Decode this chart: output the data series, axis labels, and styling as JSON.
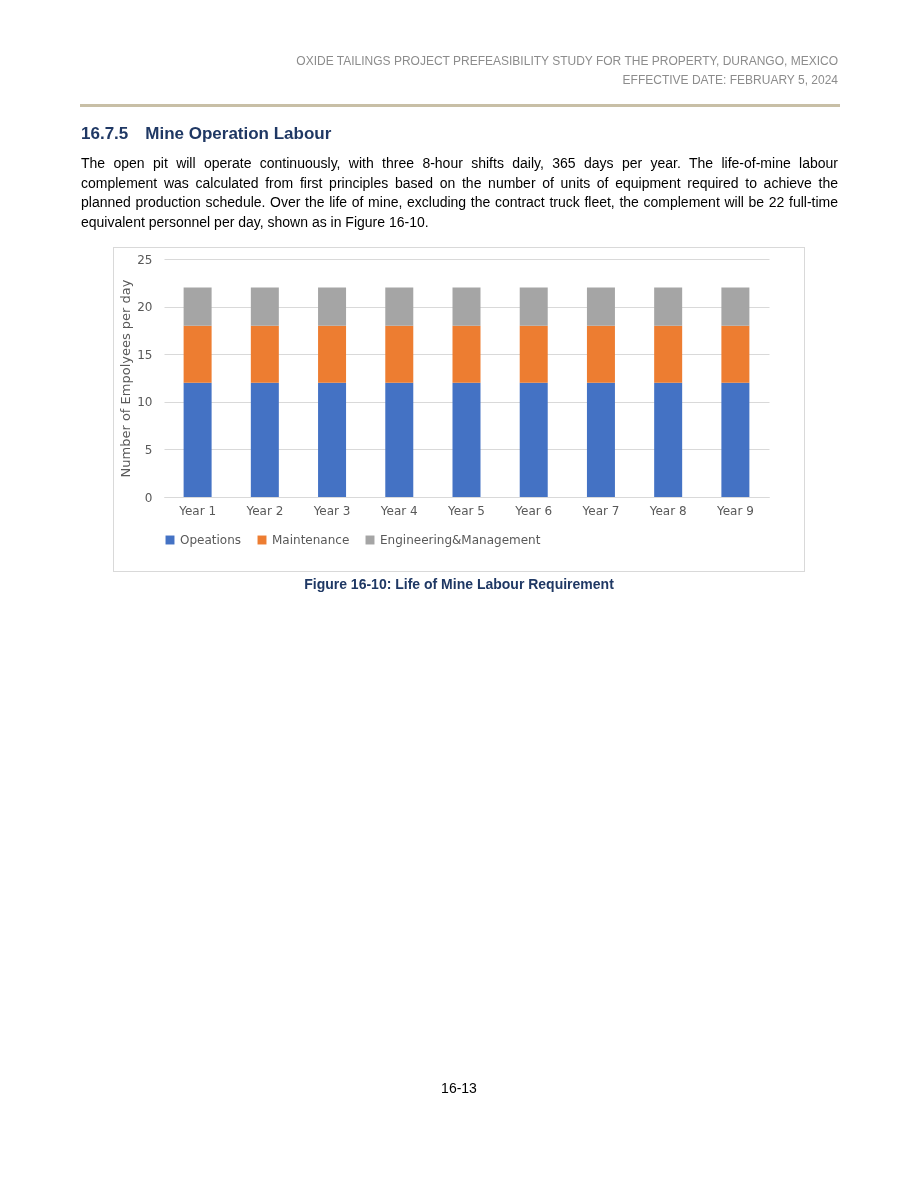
{
  "chart_data": {
    "type": "bar",
    "title": "16.7.5 Mine Operation Labour",
    "annotations": [
      "OXIDE TAILINGS PROJECT PREFEASIBILITY STUDY FOR THE PROPERTY, DURANGO, MEXICO",
      "EFFECTIVE DATE: FEBRUARY 5, 2024",
      "The open pit will operate continuously, with three 8-hour shifts daily, 365 days per year. The life-of-mine labour complement was calculated from first principles based on the number of units of equipment required to achieve the planned production schedule. Over the life of mine, excluding the contract truck fleet, the complement will be 22 full-time equivalent personnel per day, shown as in Figure 16-10.",
      "Figure 16-10: Life of Mine Labour Requirement",
      "16-13"
    ],
    "ylabel": "Number of Empolyees per day",
    "categories": [
      "Year 1",
      "Year 2",
      "Year 3",
      "Year 4",
      "Year 5",
      "Year 6",
      "Year 7",
      "Year 8",
      "Year 9"
    ],
    "series": [
      {
        "name": "Opeations",
        "color": "#4472c4",
        "values": [
          12,
          12,
          12,
          12,
          12,
          12,
          12,
          12,
          12
        ]
      },
      {
        "name": "Maintenance",
        "color": "#ed7d31",
        "values": [
          6,
          6,
          6,
          6,
          6,
          6,
          6,
          6,
          6
        ]
      },
      {
        "name": "Engineering&Management",
        "color": "#a5a5a5",
        "values": [
          4,
          4,
          4,
          4,
          4,
          4,
          4,
          4,
          4
        ]
      }
    ],
    "stacked": true,
    "ylim": [
      0,
      25
    ],
    "yticks": [
      0,
      5,
      10,
      15,
      20,
      25
    ],
    "grid": "y",
    "legend": "bottom"
  }
}
